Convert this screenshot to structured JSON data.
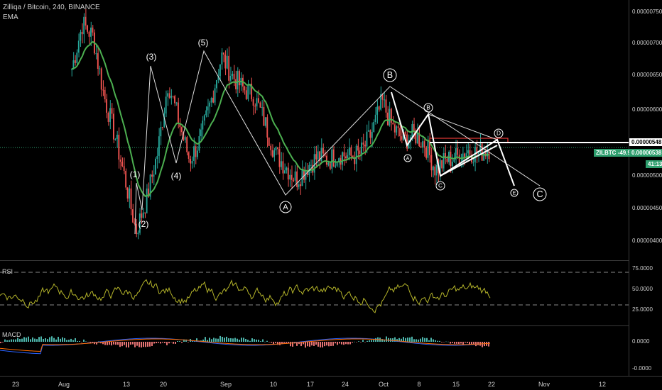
{
  "legend": {
    "title": "Zilliqa / Bitcoin, 240, BINANCE",
    "indicator": "EMA"
  },
  "panes": {
    "rsi_label": "RSI",
    "macd_label": "MACD"
  },
  "price_axis": {
    "ticks": [
      "0.00000750",
      "0.00000700",
      "0.00000650",
      "0.00000600",
      "0.00000550",
      "0.00000500",
      "0.00000450",
      "0.00000400"
    ],
    "level_548": "0.00000548",
    "last_label": "ZILBTC -49.95%",
    "last_price": "0.00000538",
    "countdown": "41:13"
  },
  "rsi_axis": {
    "ticks": [
      "75.0000",
      "50.0000",
      "25.0000"
    ]
  },
  "macd_axis": {
    "ticks": [
      "0.0000",
      "-0.0000"
    ]
  },
  "time_axis": {
    "ticks": [
      "23",
      "Aug",
      "13",
      "20",
      "Sep",
      "10",
      "17",
      "24",
      "Oct",
      "8",
      "15",
      "22",
      "Nov",
      "12"
    ]
  },
  "wave_labels": {
    "w1": "(1)",
    "w2": "(2)",
    "w3": "(3)",
    "w4": "(4)",
    "w5": "(5)",
    "A_big": "A",
    "B_big": "B",
    "C_big": "C",
    "A_small": "A",
    "B_small": "B",
    "C_small": "C",
    "D_small": "D",
    "E_small": "E"
  },
  "colors": {
    "bull": "#26a69a",
    "bear": "#ef5350",
    "ema": "#4caf50",
    "rsi": "#b5b52a",
    "macd": "#2962ff",
    "signal": "#ff6d00",
    "badge": "#2e9e6e"
  },
  "chart_data": {
    "type": "candlestick",
    "price_path": [
      6.6,
      7.3,
      7.1,
      6.2,
      5.6,
      4.9,
      4.1,
      4.6,
      5.3,
      6.4,
      5.8,
      5.2,
      5.5,
      6.1,
      6.8,
      6.5,
      6.3,
      6.2,
      5.8,
      5.3,
      5.1,
      4.9,
      5.1,
      5.25,
      5.2,
      5.3,
      5.25,
      5.3,
      5.6,
      6.1,
      5.7,
      5.5,
      5.6,
      5.45,
      5.05,
      5.2,
      5.25,
      5.35,
      5.3,
      5.38
    ],
    "ylim": [
      3.9e-06,
      7.6e-06
    ]
  }
}
